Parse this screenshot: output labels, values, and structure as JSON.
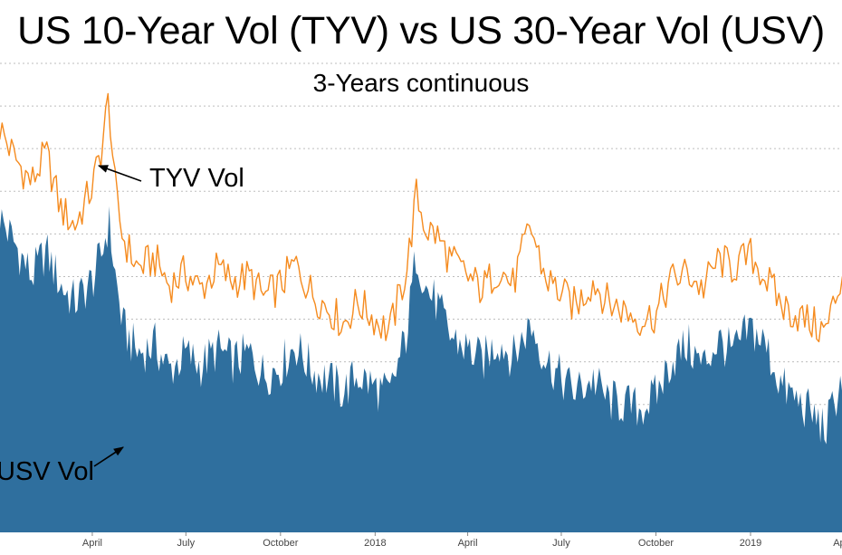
{
  "chart_data": {
    "type": "area",
    "title": "US 10-Year Vol (TYV) vs US 30-Year Vol (USV)",
    "subtitle": "3-Years continuous",
    "xlabel": "",
    "ylabel": "",
    "grid": true,
    "x_ticks": [
      {
        "label": "April",
        "date": "2017-04-01"
      },
      {
        "label": "July",
        "date": "2017-07-01"
      },
      {
        "label": "October",
        "date": "2017-10-01"
      },
      {
        "label": "2018",
        "date": "2018-01-01"
      },
      {
        "label": "April",
        "date": "2018-04-01"
      },
      {
        "label": "July",
        "date": "2018-07-01"
      },
      {
        "label": "October",
        "date": "2018-10-01"
      },
      {
        "label": "2019",
        "date": "2019-01-01"
      },
      {
        "label": "April",
        "date": "2019-04-01"
      }
    ],
    "annotations": [
      {
        "text": "TYV Vol",
        "series": "TYV Vol",
        "date": "2017-04-17"
      },
      {
        "text": "USV Vol",
        "series": "USV Vol",
        "date": "2017-05-15"
      }
    ],
    "series": [
      {
        "name": "TYV Vol",
        "style": "line",
        "color": "#f58b1f",
        "x": [
          "2017-01-01",
          "2017-01-15",
          "2017-02-01",
          "2017-02-15",
          "2017-03-01",
          "2017-03-15",
          "2017-04-01",
          "2017-04-10",
          "2017-04-17",
          "2017-04-24",
          "2017-05-01",
          "2017-05-15",
          "2017-06-01",
          "2017-06-15",
          "2017-07-01",
          "2017-07-15",
          "2017-08-01",
          "2017-08-15",
          "2017-09-01",
          "2017-09-15",
          "2017-10-01",
          "2017-10-15",
          "2017-11-01",
          "2017-11-15",
          "2017-12-01",
          "2017-12-15",
          "2018-01-01",
          "2018-01-15",
          "2018-02-01",
          "2018-02-10",
          "2018-02-20",
          "2018-03-01",
          "2018-03-15",
          "2018-04-01",
          "2018-04-15",
          "2018-05-01",
          "2018-05-15",
          "2018-06-01",
          "2018-06-15",
          "2018-07-01",
          "2018-07-15",
          "2018-08-01",
          "2018-08-15",
          "2018-09-01",
          "2018-09-15",
          "2018-10-01",
          "2018-10-15",
          "2018-11-01",
          "2018-11-15",
          "2018-12-01",
          "2018-12-15",
          "2019-01-01",
          "2019-01-15",
          "2019-02-01",
          "2019-02-15",
          "2019-03-01",
          "2019-03-15",
          "2019-04-01",
          "2019-04-15",
          "2019-05-01"
        ],
        "values": [
          9.5,
          8.8,
          8.2,
          8.9,
          7.6,
          7.2,
          8.1,
          9.0,
          10.2,
          7.8,
          6.9,
          6.2,
          6.4,
          5.8,
          6.1,
          5.7,
          6.2,
          5.9,
          6.0,
          5.5,
          5.8,
          6.3,
          5.6,
          5.3,
          4.9,
          5.4,
          5.0,
          4.7,
          6.2,
          7.9,
          7.1,
          7.0,
          6.4,
          6.0,
          5.7,
          6.2,
          5.8,
          7.2,
          6.0,
          5.6,
          5.3,
          5.9,
          5.4,
          5.2,
          5.0,
          5.1,
          5.9,
          6.1,
          5.7,
          6.4,
          6.2,
          6.5,
          6.0,
          5.3,
          5.1,
          4.9,
          4.7,
          6.1,
          4.6,
          5.3
        ]
      },
      {
        "name": "USV Vol",
        "style": "area",
        "color": "#2f6f9e",
        "x": [
          "2017-01-01",
          "2017-01-15",
          "2017-02-01",
          "2017-02-15",
          "2017-03-01",
          "2017-03-15",
          "2017-04-01",
          "2017-04-10",
          "2017-04-17",
          "2017-04-24",
          "2017-05-01",
          "2017-05-15",
          "2017-06-01",
          "2017-06-15",
          "2017-07-01",
          "2017-07-15",
          "2017-08-01",
          "2017-08-15",
          "2017-09-01",
          "2017-09-15",
          "2017-10-01",
          "2017-10-15",
          "2017-11-01",
          "2017-11-15",
          "2017-12-01",
          "2017-12-15",
          "2018-01-01",
          "2018-01-15",
          "2018-02-01",
          "2018-02-10",
          "2018-02-20",
          "2018-03-01",
          "2018-03-15",
          "2018-04-01",
          "2018-04-15",
          "2018-05-01",
          "2018-05-15",
          "2018-06-01",
          "2018-06-15",
          "2018-07-01",
          "2018-07-15",
          "2018-08-01",
          "2018-08-15",
          "2018-09-01",
          "2018-09-15",
          "2018-10-01",
          "2018-10-15",
          "2018-11-01",
          "2018-11-15",
          "2018-12-01",
          "2018-12-15",
          "2019-01-01",
          "2019-01-15",
          "2019-02-01",
          "2019-02-15",
          "2019-03-01",
          "2019-03-15",
          "2019-04-01",
          "2019-04-15",
          "2019-05-01"
        ],
        "values": [
          7.4,
          6.8,
          6.0,
          6.6,
          5.8,
          5.4,
          5.9,
          6.5,
          7.3,
          5.9,
          4.8,
          4.2,
          4.4,
          3.8,
          4.2,
          3.9,
          4.3,
          4.0,
          4.2,
          3.7,
          3.9,
          4.4,
          3.8,
          3.6,
          3.3,
          3.7,
          3.4,
          3.2,
          4.7,
          6.6,
          5.7,
          5.4,
          4.6,
          4.3,
          4.0,
          4.5,
          4.1,
          4.9,
          4.1,
          3.6,
          3.3,
          3.6,
          3.1,
          3.0,
          2.9,
          3.2,
          4.0,
          4.4,
          3.9,
          4.5,
          4.2,
          4.8,
          4.4,
          3.4,
          3.1,
          2.8,
          2.4,
          3.7,
          2.3,
          2.6
        ]
      }
    ]
  }
}
